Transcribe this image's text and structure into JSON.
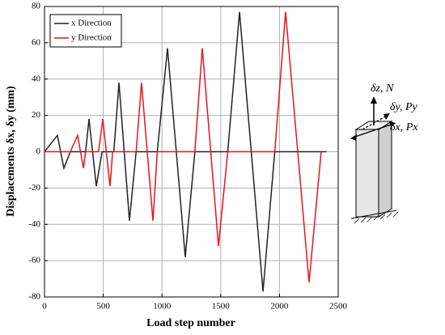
{
  "chart_data": {
    "type": "line",
    "xlabel": "Load step number",
    "ylabel": "Displacements δx, δy (mm)",
    "xlim": [
      0,
      2500
    ],
    "xticks": [
      0,
      500,
      1000,
      1500,
      2000,
      2500
    ],
    "ylim": [
      -80,
      80
    ],
    "yticks": [
      -80,
      -60,
      -40,
      -20,
      0,
      20,
      40,
      60,
      80
    ],
    "grid": true,
    "legend": "upper left",
    "series": [
      {
        "name": "x Direction",
        "color": "#222222",
        "x": [
          0,
          110,
          165,
          220,
          350,
          379,
          441,
          490,
          590,
          634,
          723,
          780,
          960,
          1047,
          1198,
          1280,
          1560,
          1660,
          1860,
          1960,
          2400
        ],
        "values": [
          0,
          9,
          -9,
          0,
          0,
          18,
          -19,
          0,
          0,
          38,
          -38,
          0,
          0,
          57,
          -58,
          0,
          0,
          77,
          -77,
          0,
          0
        ]
      },
      {
        "name": "y Direction",
        "color": "#e8141b",
        "x": [
          0,
          220,
          282,
          331,
          350,
          460,
          496,
          558,
          580,
          780,
          826,
          923,
          960,
          1280,
          1343,
          1481,
          1560,
          1960,
          2052,
          2252,
          2355
        ],
        "values": [
          0,
          0,
          9,
          -9,
          0,
          0,
          18,
          -19,
          0,
          0,
          38,
          -38,
          0,
          0,
          57,
          -52,
          0,
          0,
          77,
          -72,
          0
        ]
      }
    ]
  },
  "diagram": {
    "labels": [
      "δz, N",
      "δy, Py",
      "δx, Px"
    ]
  }
}
